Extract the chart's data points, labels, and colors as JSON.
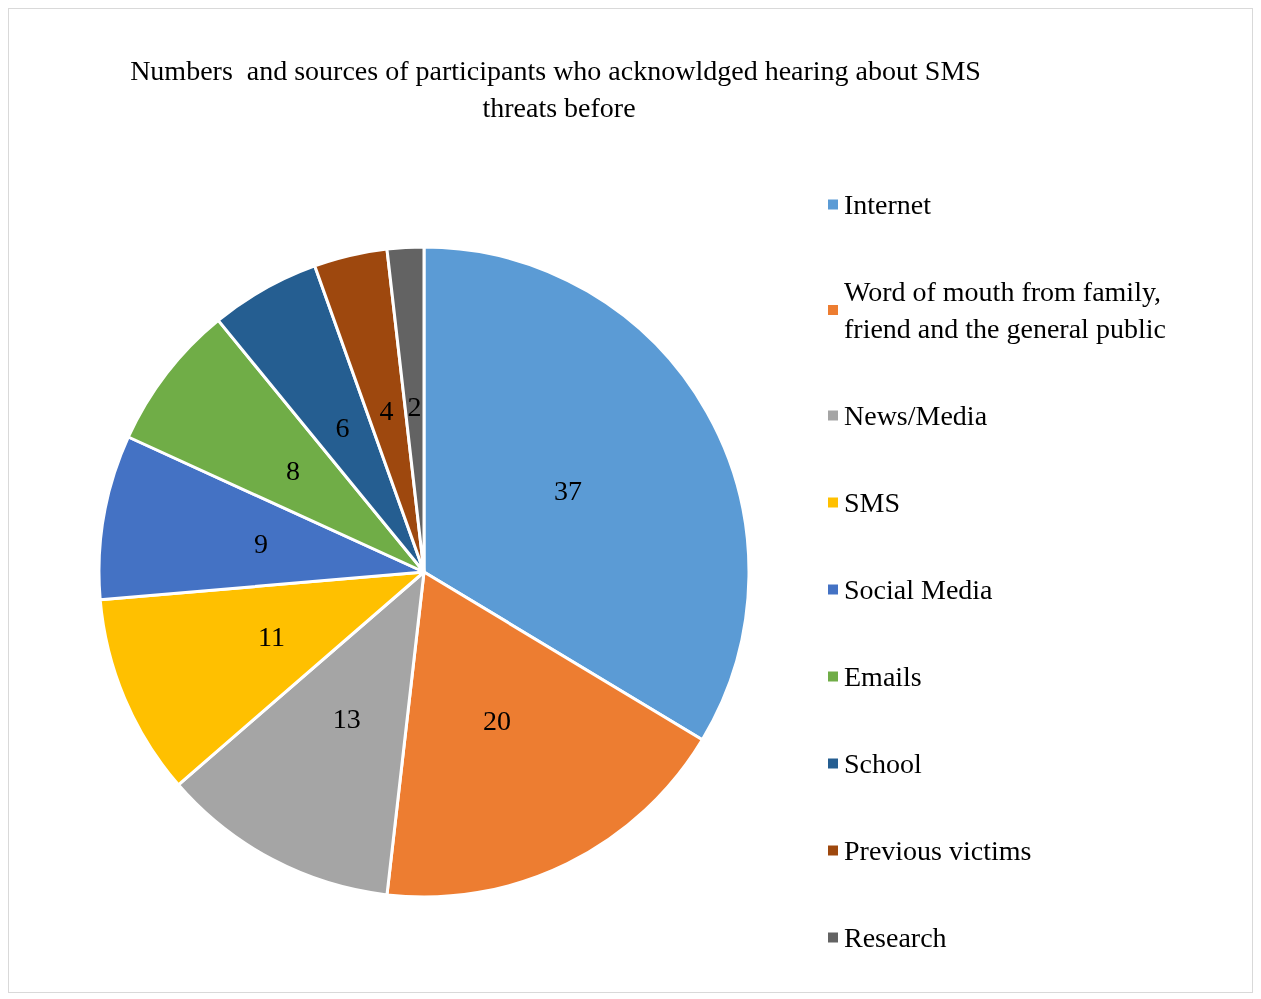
{
  "chart_data": {
    "type": "pie",
    "title": "Numbers  and sources of participants who acknowldged hearing about SMS threats before",
    "categories": [
      "Internet",
      "Word of mouth from family, friend and the general public",
      "News/Media",
      "SMS",
      "Social Media",
      "Emails",
      "School",
      "Previous victims",
      "Research"
    ],
    "values": [
      37,
      20,
      13,
      11,
      9,
      8,
      6,
      4,
      2
    ],
    "colors": [
      "#5b9bd5",
      "#ed7d31",
      "#a5a5a5",
      "#ffc000",
      "#4472c4",
      "#70ad47",
      "#255e91",
      "#9e480e",
      "#636363"
    ],
    "data_labels": true,
    "legend": "right"
  }
}
